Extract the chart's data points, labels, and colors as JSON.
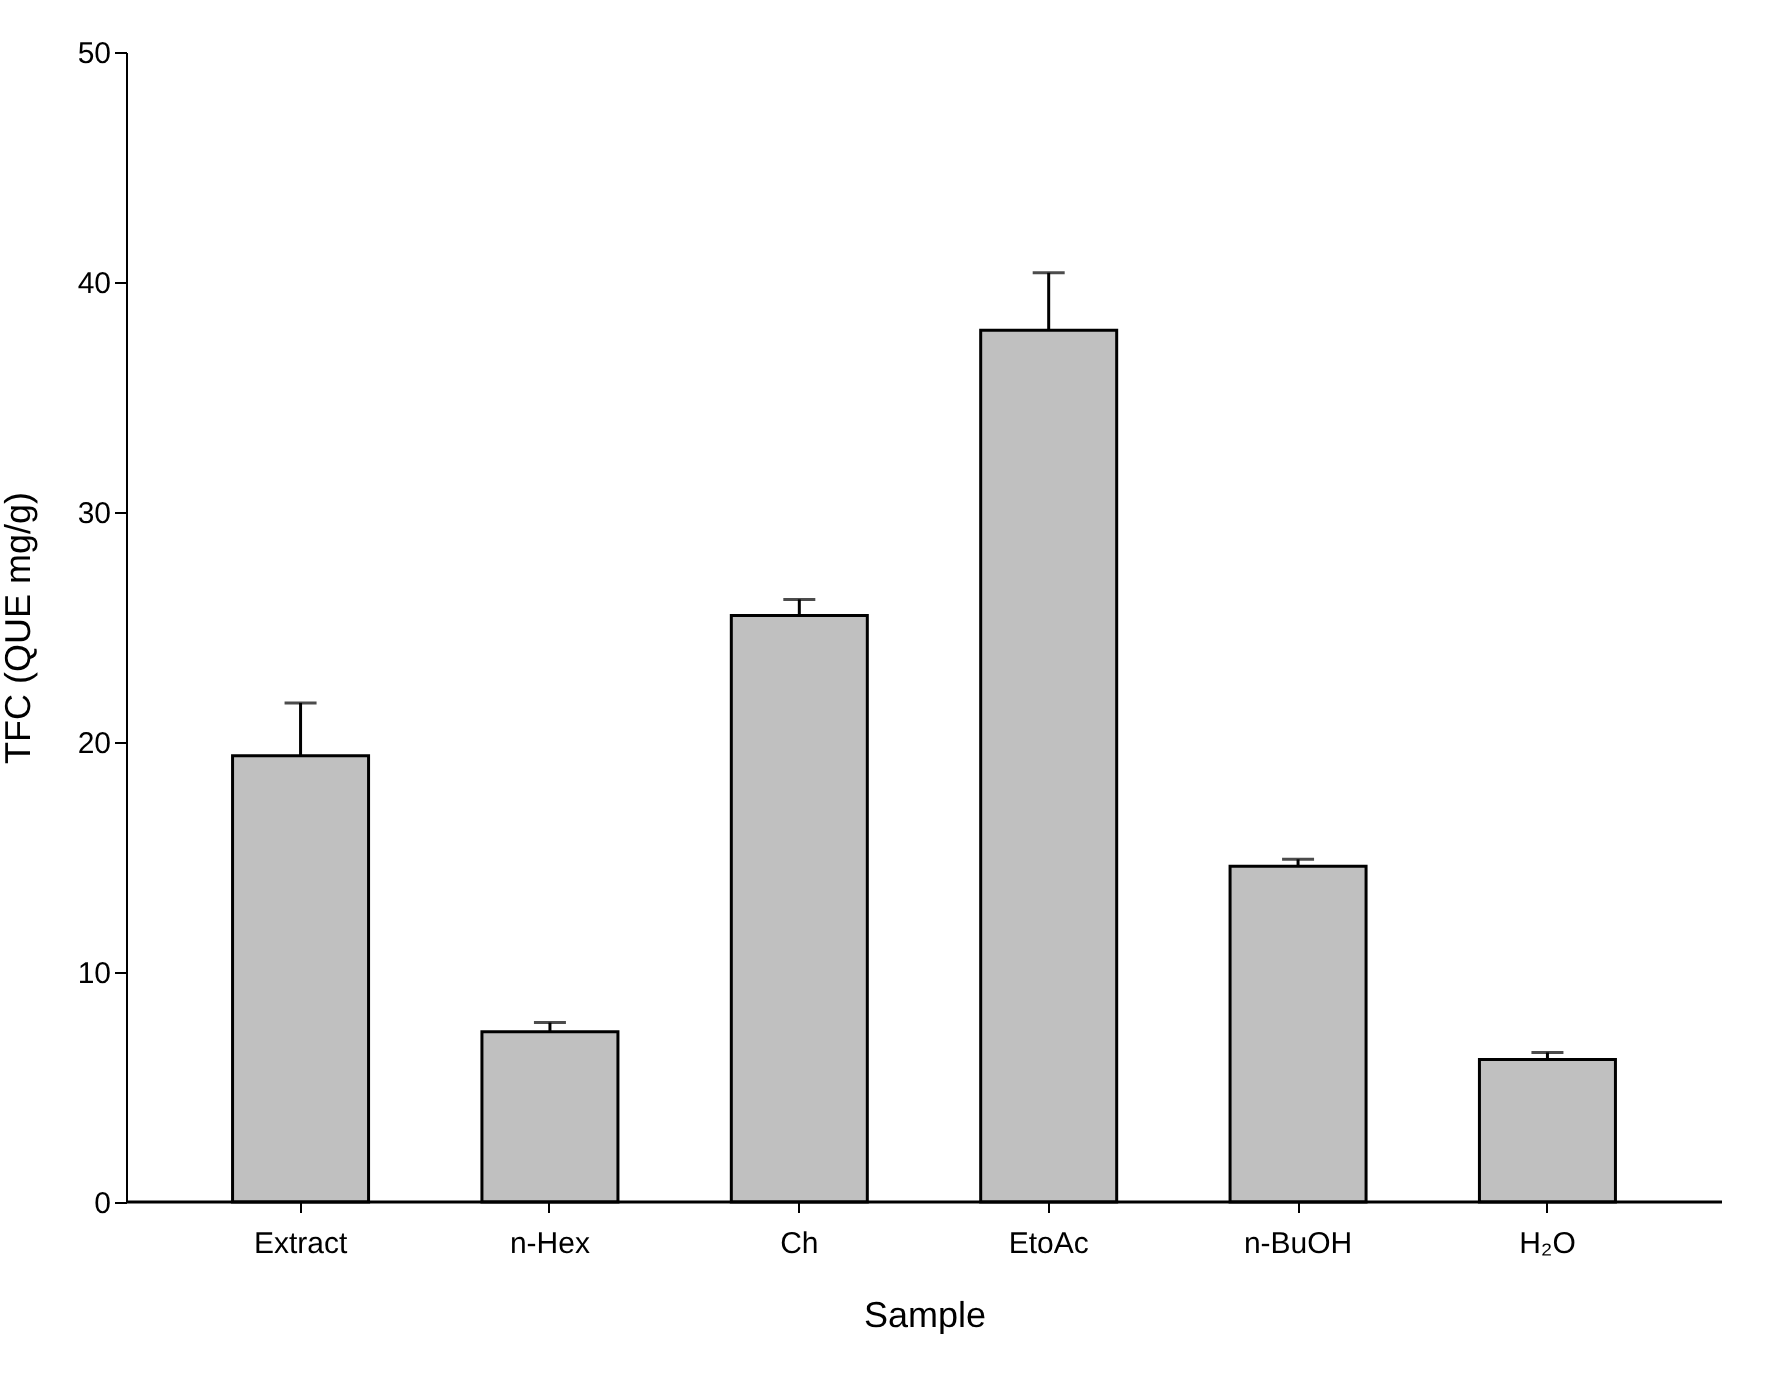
{
  "chart_data": {
    "type": "bar",
    "xlabel": "Sample",
    "ylabel": "TFC (QUE mg/g)",
    "categories": [
      "Extract",
      "n-Hex",
      "Ch",
      "EtoAc",
      "n-BuOH",
      "H₂O"
    ],
    "values": [
      19.4,
      7.4,
      25.5,
      37.9,
      14.6,
      6.2
    ],
    "errors": [
      [
        19.4,
        21.7
      ],
      [
        7.4,
        7.8
      ],
      [
        25.5,
        26.2
      ],
      [
        37.9,
        40.4
      ],
      [
        14.6,
        14.9
      ],
      [
        6.2,
        6.5
      ]
    ],
    "color": "#c0c0c0",
    "ylim": [
      0,
      50
    ],
    "yticks": [
      0,
      10,
      20,
      30,
      40,
      50
    ],
    "grid": false
  }
}
